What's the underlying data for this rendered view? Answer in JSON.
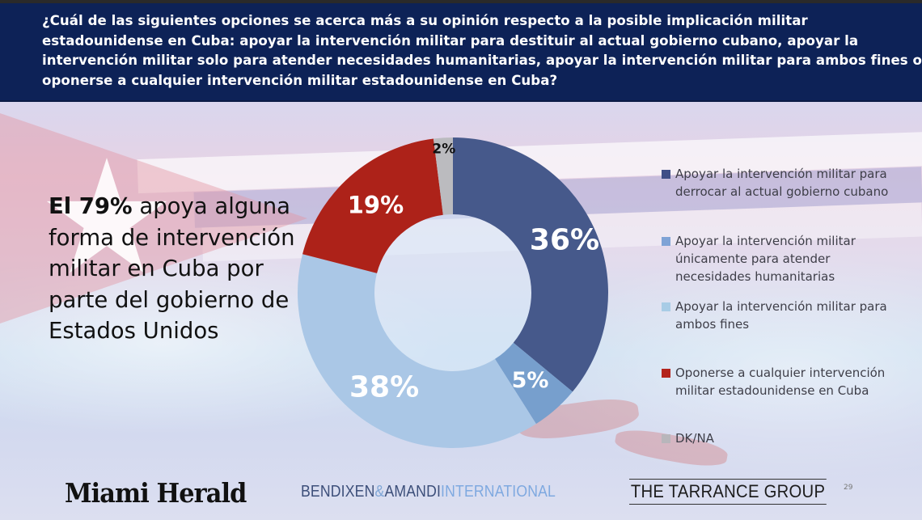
{
  "header": {
    "question": "¿Cuál de las siguientes opciones se acerca más a su opinión respecto a la posible implicación militar estadounidense en Cuba: apoyar la intervención militar para destituir al actual gobierno cubano, apoyar la intervención militar solo para atender necesidades humanitarias, apoyar la intervención militar para ambos fines o oponerse a cualquier intervención militar estadounidense en Cuba?"
  },
  "callout": {
    "bold": "El 79%",
    "rest": " apoya alguna forma de intervención militar en Cuba por parte del gobierno de Estados Unidos"
  },
  "chart_data": {
    "type": "pie",
    "subtype": "donut",
    "title": "¿Cuál de las siguientes opciones se acerca más a su opinión respecto a la posible implicación militar estadounidense en Cuba?",
    "start_angle": "top (12 o'clock), clockwise",
    "categories": [
      "Apoyar la intervención militar para derrocar al actual gobierno cubano",
      "Apoyar la intervención militar únicamente para atender necesidades humanitarias",
      "Apoyar la intervención militar para ambos fines",
      "Oponerse a cualquier intervención militar estadounidense en Cuba",
      "DK/NA"
    ],
    "values": [
      36,
      5,
      38,
      19,
      2
    ],
    "labels": [
      "36%",
      "5%",
      "38%",
      "19%",
      "2%"
    ],
    "colors": [
      "#46598b",
      "#779fcd",
      "#aac7e6",
      "#ad2219",
      "#bbbbbf"
    ],
    "label_colors": [
      "#ffffff",
      "#ffffff",
      "#ffffff",
      "#ffffff",
      "#111111"
    ],
    "legend_position": "right",
    "annotation": "El 79% apoya alguna forma de intervención militar en Cuba por parte del gobierno de Estados Unidos"
  },
  "legend": {
    "items": [
      {
        "label": "Apoyar la intervención militar para derrocar al actual gobierno cubano",
        "color": "#3f4e86"
      },
      {
        "label": "Apoyar la intervención militar únicamente para atender necesidades humanitarias",
        "color": "#7fa3d6"
      },
      {
        "label": "Apoyar la intervención militar para ambos fines",
        "color": "#a8cce6"
      },
      {
        "label": "Oponerse a cualquier intervención militar estadounidense en Cuba",
        "color": "#b3231c"
      },
      {
        "label": "DK/NA",
        "color": "#b8b6bb"
      }
    ]
  },
  "logos": {
    "miami_herald": "Miami Herald",
    "bendixen_dark": "BENDIXEN",
    "bendixen_amp": "&",
    "bendixen_amandi": "AMANDI",
    "bendixen_intl": "INTERNATIONAL",
    "tarrance": "THE TARRANCE GROUP"
  },
  "page_number": "29"
}
